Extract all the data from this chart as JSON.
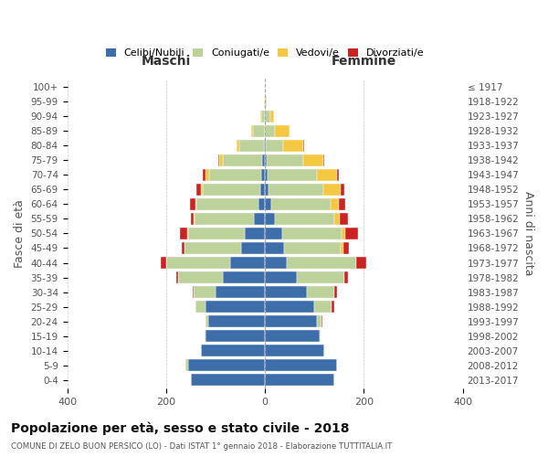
{
  "age_groups": [
    "0-4",
    "5-9",
    "10-14",
    "15-19",
    "20-24",
    "25-29",
    "30-34",
    "35-39",
    "40-44",
    "45-49",
    "50-54",
    "55-59",
    "60-64",
    "65-69",
    "70-74",
    "75-79",
    "80-84",
    "85-89",
    "90-94",
    "95-99",
    "100+"
  ],
  "birth_years": [
    "2013-2017",
    "2008-2012",
    "2003-2007",
    "1998-2002",
    "1993-1997",
    "1988-1992",
    "1983-1987",
    "1978-1982",
    "1973-1977",
    "1968-1972",
    "1963-1967",
    "1958-1962",
    "1953-1957",
    "1948-1952",
    "1943-1947",
    "1938-1942",
    "1933-1937",
    "1928-1932",
    "1923-1927",
    "1918-1922",
    "≤ 1917"
  ],
  "colors": {
    "celibe": "#3d6eaa",
    "coniugato": "#bdd19a",
    "vedovo": "#f5c842",
    "divorziato": "#cc2222"
  },
  "maschi": {
    "celibe": [
      150,
      155,
      130,
      120,
      115,
      120,
      100,
      85,
      70,
      48,
      40,
      22,
      14,
      10,
      8,
      5,
      2,
      0,
      0,
      0,
      0
    ],
    "coniugato": [
      0,
      5,
      0,
      2,
      5,
      20,
      45,
      90,
      130,
      115,
      115,
      120,
      125,
      115,
      105,
      80,
      50,
      25,
      8,
      2,
      0
    ],
    "vedovo": [
      0,
      0,
      0,
      0,
      0,
      0,
      0,
      0,
      0,
      0,
      2,
      2,
      2,
      5,
      8,
      8,
      5,
      3,
      2,
      0,
      0
    ],
    "divorziato": [
      0,
      0,
      0,
      0,
      0,
      0,
      2,
      5,
      10,
      5,
      15,
      5,
      10,
      8,
      5,
      2,
      0,
      0,
      0,
      0,
      0
    ]
  },
  "femmine": {
    "nubile": [
      140,
      145,
      120,
      110,
      105,
      100,
      85,
      65,
      45,
      38,
      35,
      20,
      12,
      8,
      5,
      3,
      2,
      0,
      0,
      0,
      0
    ],
    "coniugata": [
      0,
      0,
      0,
      2,
      10,
      35,
      55,
      95,
      140,
      115,
      120,
      120,
      120,
      110,
      100,
      75,
      35,
      20,
      10,
      2,
      0
    ],
    "vedova": [
      0,
      0,
      0,
      0,
      0,
      0,
      0,
      0,
      0,
      5,
      8,
      12,
      18,
      35,
      40,
      40,
      40,
      30,
      8,
      2,
      0
    ],
    "divorziata": [
      0,
      0,
      0,
      0,
      2,
      5,
      5,
      8,
      20,
      12,
      25,
      15,
      12,
      8,
      5,
      2,
      2,
      0,
      0,
      0,
      0
    ]
  },
  "xlim": 400,
  "title": "Popolazione per età, sesso e stato civile - 2018",
  "subtitle": "COMUNE DI ZELO BUON PERSICO (LO) - Dati ISTAT 1° gennaio 2018 - Elaborazione TUTTITALIA.IT",
  "ylabel": "Fasce di età",
  "ylabel2": "Anni di nascita",
  "legend_labels": [
    "Celibi/Nubili",
    "Coniugati/e",
    "Vedovi/e",
    "Divorziati/e"
  ],
  "maschi_label": "Maschi",
  "femmine_label": "Femmine"
}
